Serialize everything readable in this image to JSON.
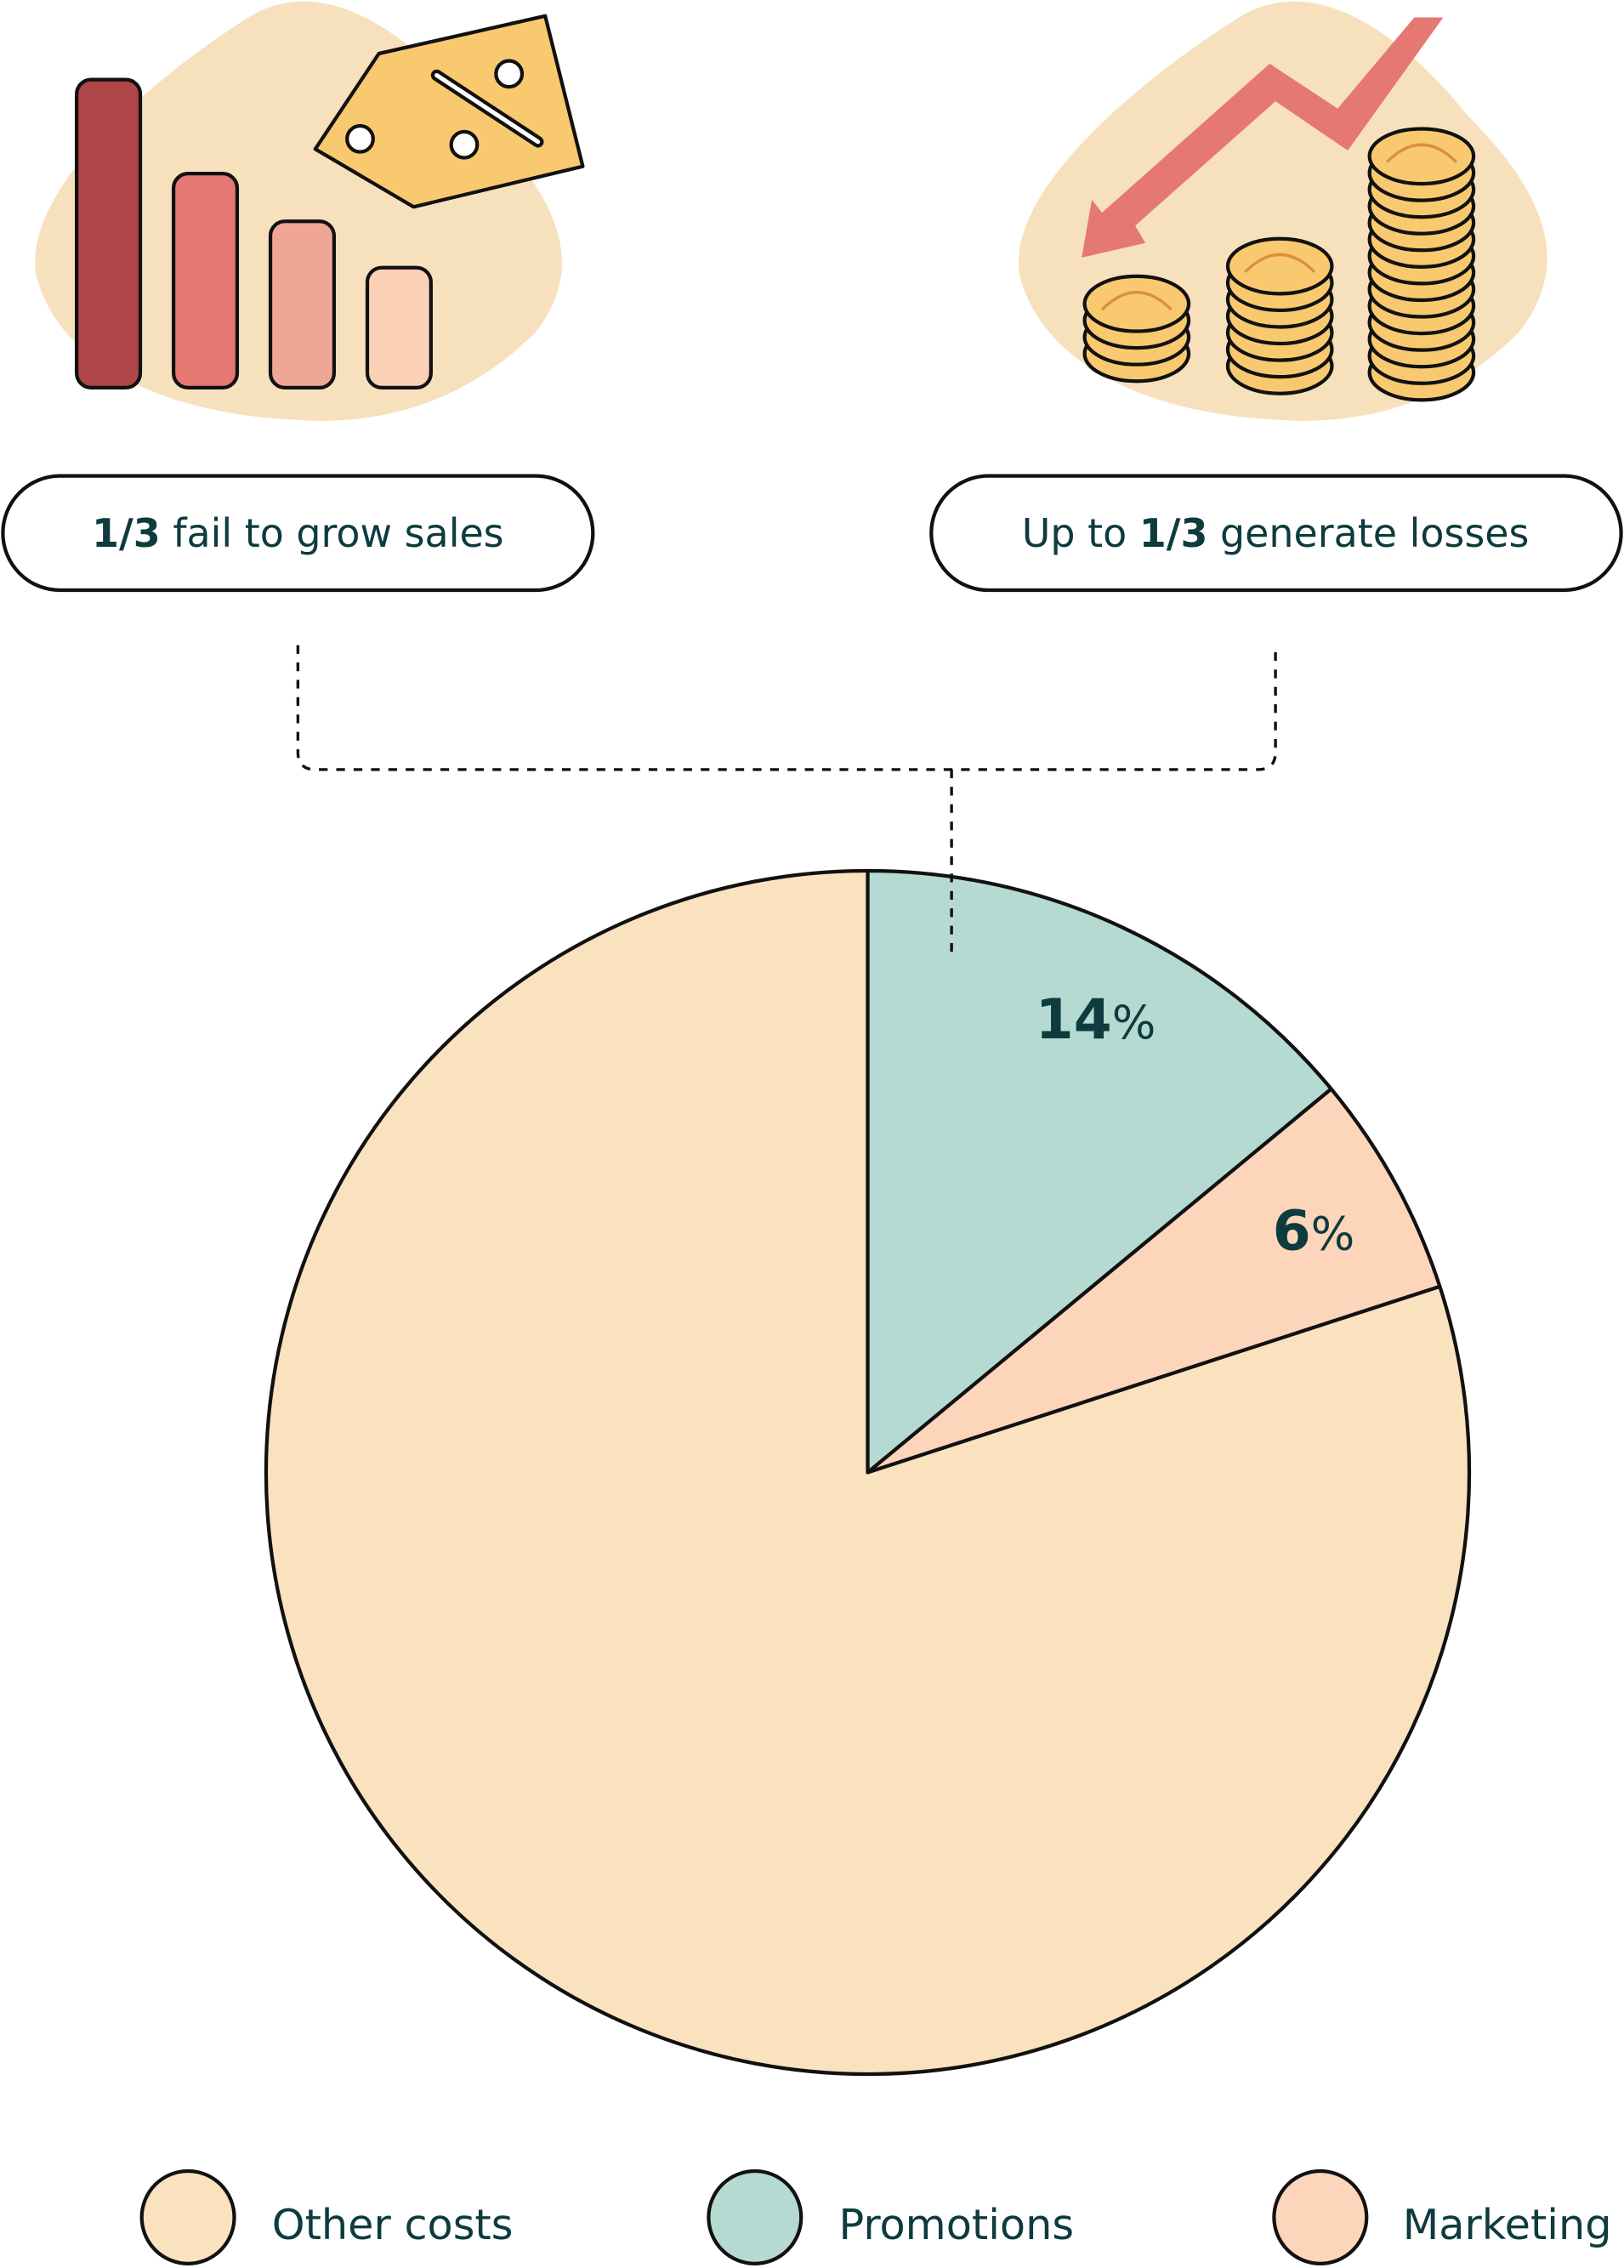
{
  "chart_data": {
    "type": "pie",
    "slices": [
      {
        "name": "Promotions",
        "value": 14,
        "label": "14",
        "unit": "%",
        "color": "#b5dad2"
      },
      {
        "name": "Marketing",
        "value": 6,
        "label": "6",
        "unit": "%",
        "color": "#fdd5bb"
      },
      {
        "name": "Other costs",
        "value": 80,
        "color": "#fae2bf"
      }
    ],
    "legend": {
      "placement": "bottom",
      "items": [
        {
          "label": "Other costs",
          "color": "#fae2bf"
        },
        {
          "label": "Promotions",
          "color": "#b5dad2"
        },
        {
          "label": "Marketing",
          "color": "#fdd5bb"
        }
      ]
    }
  },
  "callouts": [
    {
      "bold": "1/3",
      "rest": " fail to grow sales",
      "icon": "declining-bar-chart-with-discount-tag-icon"
    },
    {
      "prefix": "Up to ",
      "bold": "1/3",
      "rest": " generate losses",
      "icon": "falling-arrow-with-coin-stacks-icon"
    }
  ],
  "colors": {
    "text": "#0d3b3e",
    "blob": "#f7e1bd",
    "arrow": "#e57872",
    "coin": "#f9c970",
    "outline": "#111111"
  }
}
